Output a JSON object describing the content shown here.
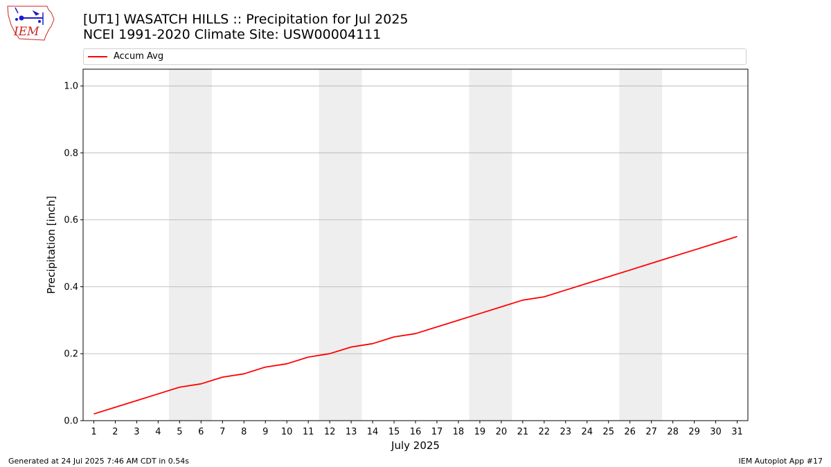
{
  "title_line1": "[UT1] WASATCH HILLS  :: Precipitation for Jul 2025",
  "title_line2": "NCEI 1991-2020 Climate Site: USW00004111",
  "logo_text": "IEM",
  "footer_left": "Generated at 24 Jul 2025 7:46 AM CDT in 0.54s",
  "footer_right": "IEM Autoplot App #17",
  "colors": {
    "series": "#ff0000",
    "weekend_band": "#eeeeee",
    "grid": "#b0b0b0",
    "logo": "#cc2222",
    "logo_icon": "#1a1acc"
  },
  "chart_data": {
    "type": "line",
    "xlabel": "July 2025",
    "ylabel": "Precipitation [inch]",
    "xlim": [
      0.5,
      31.5
    ],
    "ylim": [
      0,
      1.05
    ],
    "x_ticks": [
      1,
      2,
      3,
      4,
      5,
      6,
      7,
      8,
      9,
      10,
      11,
      12,
      13,
      14,
      15,
      16,
      17,
      18,
      19,
      20,
      21,
      22,
      23,
      24,
      25,
      26,
      27,
      28,
      29,
      30,
      31
    ],
    "y_ticks": [
      0.0,
      0.2,
      0.4,
      0.6,
      0.8,
      1.0
    ],
    "y_tick_labels": [
      "0.0",
      "0.2",
      "0.4",
      "0.6",
      "0.8",
      "1.0"
    ],
    "grid": "horizontal",
    "legend_position": "top",
    "shaded_day_ranges": [
      [
        4.5,
        6.5
      ],
      [
        11.5,
        13.5
      ],
      [
        18.5,
        20.5
      ],
      [
        25.5,
        27.5
      ]
    ],
    "series": [
      {
        "name": "Accum Avg",
        "x": [
          1,
          2,
          3,
          4,
          5,
          6,
          7,
          8,
          9,
          10,
          11,
          12,
          13,
          14,
          15,
          16,
          17,
          18,
          19,
          20,
          21,
          22,
          23,
          24,
          25,
          26,
          27,
          28,
          29,
          30,
          31
        ],
        "values": [
          0.02,
          0.04,
          0.06,
          0.08,
          0.1,
          0.11,
          0.13,
          0.14,
          0.16,
          0.17,
          0.19,
          0.2,
          0.22,
          0.23,
          0.25,
          0.26,
          0.28,
          0.3,
          0.32,
          0.34,
          0.36,
          0.37,
          0.39,
          0.41,
          0.43,
          0.45,
          0.47,
          0.49,
          0.51,
          0.53,
          0.55
        ]
      }
    ]
  }
}
